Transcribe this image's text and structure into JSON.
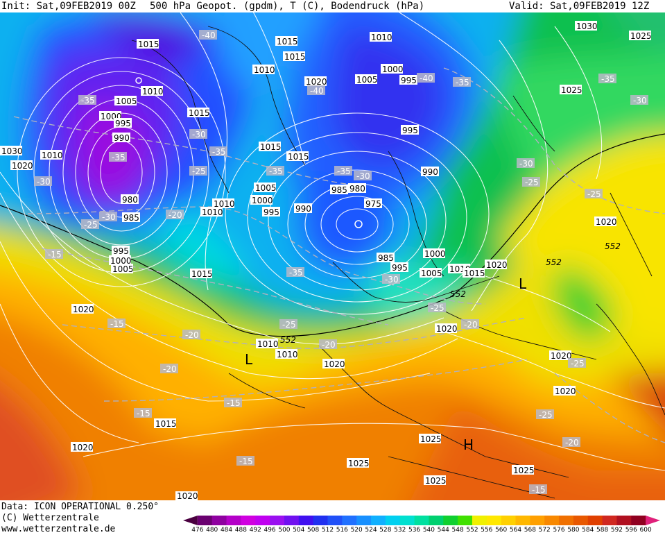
{
  "header": {
    "init": "Init: Sat,09FEB2019 00Z",
    "title": "500 hPa Geopot. (gpdm), T (C), Bodendruck (hPa)",
    "valid": "Valid: Sat,09FEB2019 12Z"
  },
  "pressure_labels": [
    "1030",
    "1020",
    "1015",
    "1010",
    "1005",
    "1000",
    "995",
    "990",
    "985",
    "980",
    "975",
    "1025"
  ],
  "temperature_labels": [
    "-40",
    "-35",
    "-30",
    "-25",
    "-20",
    "-15"
  ],
  "contour_label": "552",
  "systems": {
    "low": "L",
    "high": "H"
  },
  "footer": {
    "data": "Data: ICON OPERATIONAL 0.250°",
    "copyright": "(C) Wetterzentrale",
    "url": "www.wetterzentrale.de"
  },
  "colorbar": {
    "ticks": [
      "476",
      "480",
      "484",
      "488",
      "492",
      "496",
      "500",
      "504",
      "508",
      "512",
      "516",
      "520",
      "524",
      "528",
      "532",
      "536",
      "540",
      "544",
      "548",
      "552",
      "556",
      "560",
      "564",
      "568",
      "572",
      "576",
      "580",
      "584",
      "588",
      "592",
      "596",
      "600"
    ],
    "colors": [
      "#4a0040",
      "#6a0070",
      "#8f00a0",
      "#b400c8",
      "#d000e0",
      "#c000f0",
      "#9a10f0",
      "#7010f0",
      "#4010f0",
      "#2030f0",
      "#2050f8",
      "#2070ff",
      "#1890ff",
      "#10b0ff",
      "#00d0f0",
      "#00e0d0",
      "#00e0a0",
      "#00d070",
      "#10d030",
      "#40e000",
      "#f0f000",
      "#ffe800",
      "#ffd000",
      "#ffb800",
      "#ffa000",
      "#f88800",
      "#f07000",
      "#e85800",
      "#e04000",
      "#d02820",
      "#b01020",
      "#900020",
      "#e0207a"
    ]
  }
}
